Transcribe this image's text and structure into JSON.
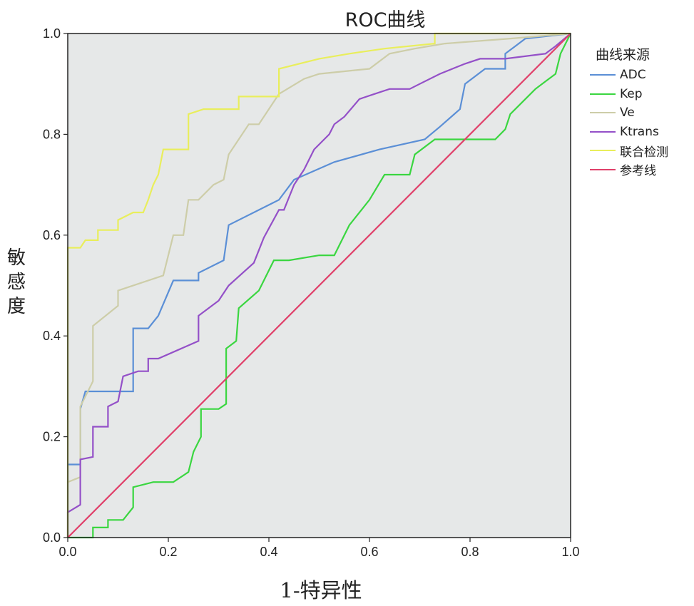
{
  "chart_data": {
    "type": "line",
    "title": "ROC曲线",
    "xlabel": "1-特异性",
    "ylabel": "敏感度",
    "xlim": [
      0,
      1
    ],
    "ylim": [
      0,
      1
    ],
    "x_ticks": [
      "0.0",
      "0.2",
      "0.4",
      "0.6",
      "0.8",
      "1.0"
    ],
    "y_ticks": [
      "0.0",
      "0.2",
      "0.4",
      "0.6",
      "0.8",
      "1.0"
    ],
    "grid": false,
    "legend_title": "曲线来源",
    "legend_position": "right",
    "plot_background": "#e6e8e8",
    "series": [
      {
        "name": "ADC",
        "color": "#5b8fd6",
        "points": [
          [
            0,
            0
          ],
          [
            0,
            0.145
          ],
          [
            0.025,
            0.145
          ],
          [
            0.025,
            0.255
          ],
          [
            0.035,
            0.29
          ],
          [
            0.13,
            0.29
          ],
          [
            0.13,
            0.415
          ],
          [
            0.16,
            0.415
          ],
          [
            0.18,
            0.44
          ],
          [
            0.21,
            0.51
          ],
          [
            0.26,
            0.51
          ],
          [
            0.26,
            0.525
          ],
          [
            0.31,
            0.55
          ],
          [
            0.32,
            0.62
          ],
          [
            0.42,
            0.67
          ],
          [
            0.45,
            0.71
          ],
          [
            0.53,
            0.745
          ],
          [
            0.62,
            0.77
          ],
          [
            0.71,
            0.79
          ],
          [
            0.74,
            0.815
          ],
          [
            0.78,
            0.85
          ],
          [
            0.79,
            0.9
          ],
          [
            0.83,
            0.93
          ],
          [
            0.87,
            0.93
          ],
          [
            0.87,
            0.96
          ],
          [
            0.89,
            0.975
          ],
          [
            0.91,
            0.99
          ],
          [
            1,
            1
          ]
        ]
      },
      {
        "name": "Kep",
        "color": "#3ad640",
        "points": [
          [
            0,
            0
          ],
          [
            0.05,
            0
          ],
          [
            0.05,
            0.02
          ],
          [
            0.08,
            0.02
          ],
          [
            0.08,
            0.035
          ],
          [
            0.11,
            0.035
          ],
          [
            0.13,
            0.06
          ],
          [
            0.13,
            0.1
          ],
          [
            0.17,
            0.11
          ],
          [
            0.21,
            0.11
          ],
          [
            0.24,
            0.13
          ],
          [
            0.25,
            0.17
          ],
          [
            0.265,
            0.2
          ],
          [
            0.265,
            0.255
          ],
          [
            0.3,
            0.255
          ],
          [
            0.315,
            0.265
          ],
          [
            0.315,
            0.375
          ],
          [
            0.335,
            0.39
          ],
          [
            0.34,
            0.455
          ],
          [
            0.38,
            0.49
          ],
          [
            0.41,
            0.55
          ],
          [
            0.44,
            0.55
          ],
          [
            0.5,
            0.56
          ],
          [
            0.53,
            0.56
          ],
          [
            0.56,
            0.62
          ],
          [
            0.6,
            0.67
          ],
          [
            0.63,
            0.72
          ],
          [
            0.68,
            0.72
          ],
          [
            0.69,
            0.76
          ],
          [
            0.73,
            0.79
          ],
          [
            0.78,
            0.79
          ],
          [
            0.85,
            0.79
          ],
          [
            0.87,
            0.81
          ],
          [
            0.88,
            0.84
          ],
          [
            0.93,
            0.89
          ],
          [
            0.97,
            0.92
          ],
          [
            0.98,
            0.96
          ],
          [
            1,
            1
          ]
        ]
      },
      {
        "name": "Ve",
        "color": "#cdcda8",
        "points": [
          [
            0,
            0
          ],
          [
            0,
            0.11
          ],
          [
            0.025,
            0.12
          ],
          [
            0.025,
            0.26
          ],
          [
            0.05,
            0.31
          ],
          [
            0.05,
            0.42
          ],
          [
            0.1,
            0.46
          ],
          [
            0.1,
            0.49
          ],
          [
            0.19,
            0.52
          ],
          [
            0.21,
            0.6
          ],
          [
            0.23,
            0.6
          ],
          [
            0.24,
            0.67
          ],
          [
            0.26,
            0.67
          ],
          [
            0.29,
            0.7
          ],
          [
            0.31,
            0.71
          ],
          [
            0.32,
            0.76
          ],
          [
            0.36,
            0.82
          ],
          [
            0.38,
            0.82
          ],
          [
            0.42,
            0.88
          ],
          [
            0.47,
            0.91
          ],
          [
            0.5,
            0.92
          ],
          [
            0.6,
            0.93
          ],
          [
            0.64,
            0.96
          ],
          [
            0.69,
            0.97
          ],
          [
            0.75,
            0.98
          ],
          [
            0.88,
            0.99
          ],
          [
            1,
            1
          ]
        ]
      },
      {
        "name": "Ktrans",
        "color": "#9450c8",
        "points": [
          [
            0,
            0
          ],
          [
            0,
            0.05
          ],
          [
            0.025,
            0.065
          ],
          [
            0.025,
            0.155
          ],
          [
            0.05,
            0.16
          ],
          [
            0.05,
            0.22
          ],
          [
            0.08,
            0.22
          ],
          [
            0.08,
            0.26
          ],
          [
            0.1,
            0.27
          ],
          [
            0.11,
            0.32
          ],
          [
            0.14,
            0.33
          ],
          [
            0.16,
            0.33
          ],
          [
            0.16,
            0.355
          ],
          [
            0.18,
            0.355
          ],
          [
            0.26,
            0.39
          ],
          [
            0.26,
            0.44
          ],
          [
            0.3,
            0.47
          ],
          [
            0.32,
            0.5
          ],
          [
            0.37,
            0.545
          ],
          [
            0.39,
            0.595
          ],
          [
            0.42,
            0.65
          ],
          [
            0.43,
            0.65
          ],
          [
            0.45,
            0.7
          ],
          [
            0.47,
            0.73
          ],
          [
            0.49,
            0.77
          ],
          [
            0.52,
            0.8
          ],
          [
            0.53,
            0.82
          ],
          [
            0.55,
            0.835
          ],
          [
            0.58,
            0.87
          ],
          [
            0.61,
            0.88
          ],
          [
            0.64,
            0.89
          ],
          [
            0.68,
            0.89
          ],
          [
            0.7,
            0.9
          ],
          [
            0.74,
            0.92
          ],
          [
            0.79,
            0.94
          ],
          [
            0.82,
            0.95
          ],
          [
            0.87,
            0.95
          ],
          [
            0.95,
            0.96
          ],
          [
            0.97,
            0.975
          ],
          [
            1,
            1
          ]
        ]
      },
      {
        "name": "联合检测",
        "color": "#e9ee5c",
        "points": [
          [
            0,
            0
          ],
          [
            0,
            0.575
          ],
          [
            0.025,
            0.575
          ],
          [
            0.035,
            0.59
          ],
          [
            0.06,
            0.59
          ],
          [
            0.06,
            0.61
          ],
          [
            0.1,
            0.61
          ],
          [
            0.1,
            0.63
          ],
          [
            0.13,
            0.645
          ],
          [
            0.15,
            0.645
          ],
          [
            0.16,
            0.67
          ],
          [
            0.17,
            0.7
          ],
          [
            0.18,
            0.72
          ],
          [
            0.19,
            0.77
          ],
          [
            0.24,
            0.77
          ],
          [
            0.24,
            0.84
          ],
          [
            0.27,
            0.85
          ],
          [
            0.34,
            0.85
          ],
          [
            0.34,
            0.875
          ],
          [
            0.42,
            0.875
          ],
          [
            0.42,
            0.93
          ],
          [
            0.5,
            0.95
          ],
          [
            0.56,
            0.96
          ],
          [
            0.63,
            0.97
          ],
          [
            0.73,
            0.98
          ],
          [
            0.73,
            1
          ],
          [
            1,
            1
          ]
        ]
      },
      {
        "name": "参考线",
        "color": "#e0406a",
        "points": [
          [
            0,
            0
          ],
          [
            1,
            1
          ]
        ]
      }
    ]
  }
}
